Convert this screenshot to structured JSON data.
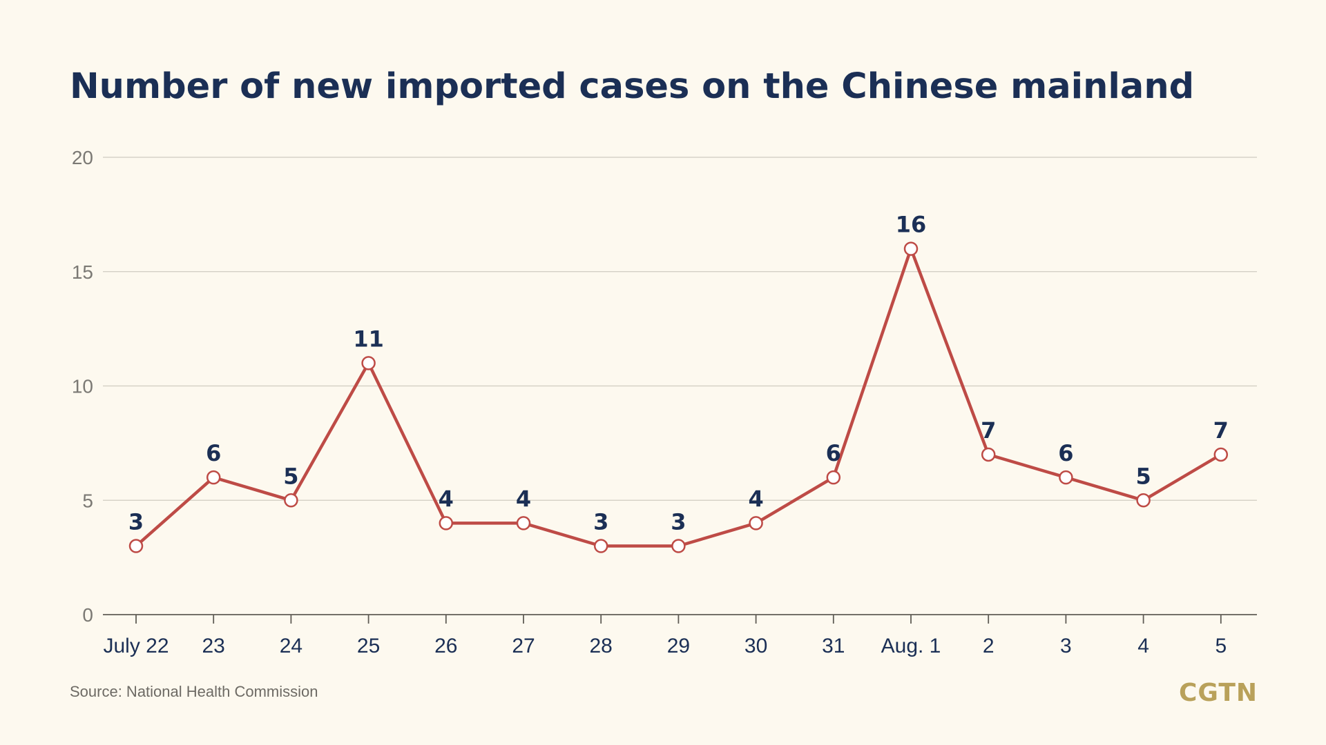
{
  "chart_data": {
    "type": "line",
    "title": "Number of new imported cases on the Chinese mainland",
    "categories": [
      "July 22",
      "23",
      "24",
      "25",
      "26",
      "27",
      "28",
      "29",
      "30",
      "31",
      "Aug. 1",
      "2",
      "3",
      "4",
      "5"
    ],
    "values": [
      3,
      6,
      5,
      11,
      4,
      4,
      3,
      3,
      4,
      6,
      16,
      7,
      6,
      5,
      7
    ],
    "ylim": [
      0,
      20
    ],
    "yticks": [
      0,
      5,
      10,
      15,
      20
    ],
    "grid": true,
    "xlabel": "",
    "ylabel": "",
    "colors": {
      "line": "#be4b46",
      "marker_fill": "#ffffff",
      "grid": "#cfcbc0",
      "axis": "#5f5c55",
      "label": "#1b2f55",
      "tick": "#7b7974"
    }
  },
  "source": "Source: National Health Commission",
  "brand": "CGTN"
}
